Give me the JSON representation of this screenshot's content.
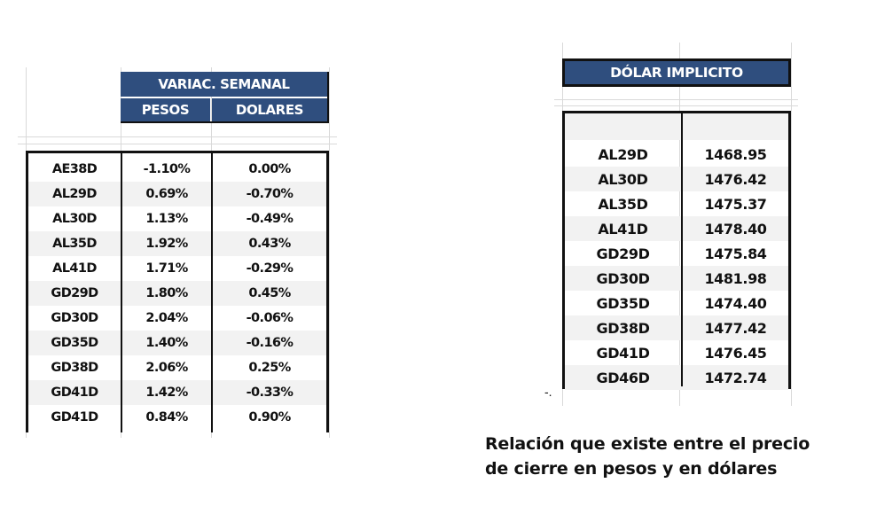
{
  "weekly_change": {
    "title": "VARIAC. SEMANAL",
    "col_pesos": "PESOS",
    "col_dolares": "DOLARES",
    "rows": [
      {
        "bond": "AE38D",
        "pesos": "-1.10%",
        "dolares": "0.00%"
      },
      {
        "bond": "AL29D",
        "pesos": "0.69%",
        "dolares": "-0.70%"
      },
      {
        "bond": "AL30D",
        "pesos": "1.13%",
        "dolares": "-0.49%"
      },
      {
        "bond": "AL35D",
        "pesos": "1.92%",
        "dolares": "0.43%"
      },
      {
        "bond": "AL41D",
        "pesos": "1.71%",
        "dolares": "-0.29%"
      },
      {
        "bond": "GD29D",
        "pesos": "1.80%",
        "dolares": "0.45%"
      },
      {
        "bond": "GD30D",
        "pesos": "2.04%",
        "dolares": "-0.06%"
      },
      {
        "bond": "GD35D",
        "pesos": "1.40%",
        "dolares": "-0.16%"
      },
      {
        "bond": "GD38D",
        "pesos": "2.06%",
        "dolares": "0.25%"
      },
      {
        "bond": "GD41D",
        "pesos": "1.42%",
        "dolares": "-0.33%"
      },
      {
        "bond": "GD41D",
        "pesos": "0.84%",
        "dolares": "0.90%"
      }
    ]
  },
  "implied_dollar": {
    "title": "DÓLAR IMPLICITO",
    "rows": [
      {
        "bond": "AL29D",
        "value": "1468.95"
      },
      {
        "bond": "AL30D",
        "value": "1476.42"
      },
      {
        "bond": "AL35D",
        "value": "1475.37"
      },
      {
        "bond": "AL41D",
        "value": "1478.40"
      },
      {
        "bond": "GD29D",
        "value": "1475.84"
      },
      {
        "bond": "GD30D",
        "value": "1481.98"
      },
      {
        "bond": "GD35D",
        "value": "1474.40"
      },
      {
        "bond": "GD38D",
        "value": "1477.42"
      },
      {
        "bond": "GD41D",
        "value": "1476.45"
      },
      {
        "bond": "GD46D",
        "value": "1472.74"
      }
    ]
  },
  "caption": {
    "line1": "Relación que existe entre el precio",
    "line2": "de cierre en pesos y en dólares"
  },
  "stray_mark": "-."
}
